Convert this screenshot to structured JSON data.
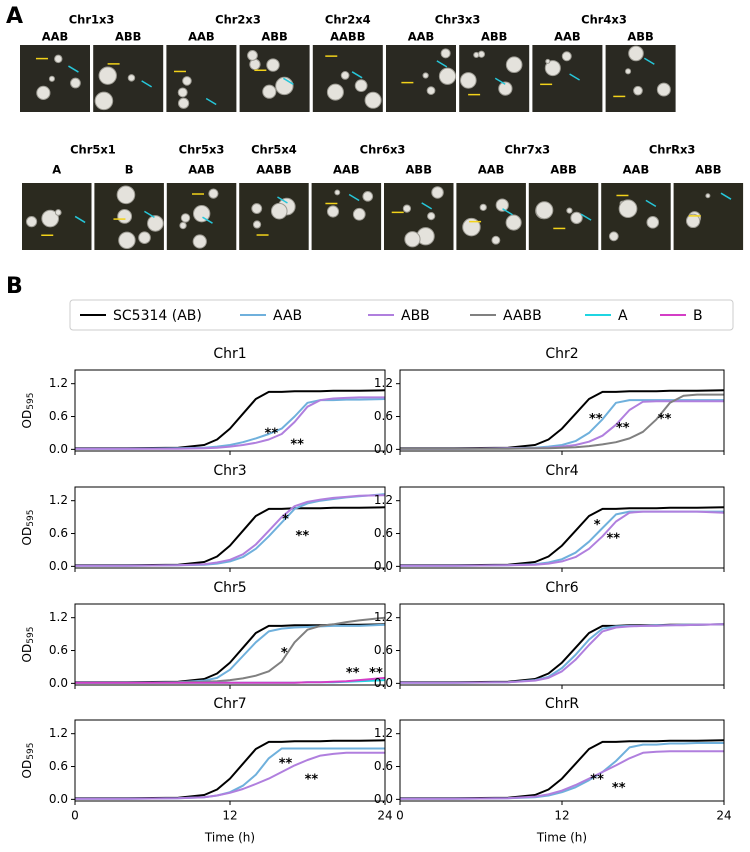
{
  "panel_a": {
    "label": "A",
    "rows": [
      [
        {
          "label": "Chr1x3",
          "genotypes": [
            "AAB",
            "ABB"
          ]
        },
        {
          "label": "Chr2x3",
          "genotypes": [
            "AAB",
            "ABB"
          ]
        },
        {
          "label": "Chr2x4",
          "genotypes": [
            "AABB"
          ]
        },
        {
          "label": "Chr3x3",
          "genotypes": [
            "AAB",
            "ABB"
          ]
        },
        {
          "label": "Chr4x3",
          "genotypes": [
            "AAB",
            "ABB"
          ]
        }
      ],
      [
        {
          "label": "Chr5x1",
          "genotypes": [
            "A",
            "B"
          ]
        },
        {
          "label": "Chr5x3",
          "genotypes": [
            "AAB"
          ]
        },
        {
          "label": "Chr5x4",
          "genotypes": [
            "AABB"
          ]
        },
        {
          "label": "Chr6x3",
          "genotypes": [
            "AAB",
            "ABB"
          ]
        },
        {
          "label": "Chr7x3",
          "genotypes": [
            "AAB",
            "ABB"
          ]
        },
        {
          "label": "ChrRx3",
          "genotypes": [
            "AAB",
            "ABB"
          ]
        }
      ]
    ]
  },
  "panel_b": {
    "label": "B",
    "legend": [
      {
        "name": "SC5314 (AB)",
        "color": "#000000"
      },
      {
        "name": "AAB",
        "color": "#6fb0dc"
      },
      {
        "name": "ABB",
        "color": "#b07fde"
      },
      {
        "name": "AABB",
        "color": "#808080"
      },
      {
        "name": "A",
        "color": "#1fd5e2"
      },
      {
        "name": "B",
        "color": "#d43ec6"
      }
    ]
  },
  "chart_data": [
    {
      "type": "line",
      "title": "Chr1",
      "x": [
        0,
        4,
        8,
        10,
        11,
        12,
        13,
        14,
        15,
        16,
        17,
        18,
        19,
        20,
        21,
        22,
        24
      ],
      "xlim": [
        0,
        24
      ],
      "ylim": [
        -0.03,
        1.45
      ],
      "xticks": [
        0,
        12,
        24
      ],
      "yticks": [
        {
          "value": 0,
          "label": "0.0"
        },
        0.6,
        1.2
      ],
      "ylabel": "OD",
      "ylabel_subscript": "595",
      "show_xtick_labels": false,
      "series": [
        {
          "name": "SC5314 (AB)",
          "color": "#000000",
          "values": [
            0.02,
            0.02,
            0.03,
            0.08,
            0.18,
            0.38,
            0.65,
            0.92,
            1.05,
            1.05,
            1.06,
            1.06,
            1.06,
            1.07,
            1.07,
            1.07,
            1.08
          ]
        },
        {
          "name": "AAB",
          "color": "#6fb0dc",
          "values": [
            0.01,
            0.01,
            0.02,
            0.03,
            0.05,
            0.08,
            0.13,
            0.2,
            0.28,
            0.38,
            0.6,
            0.85,
            0.9,
            0.9,
            0.91,
            0.91,
            0.92
          ]
        },
        {
          "name": "ABB",
          "color": "#b07fde",
          "values": [
            0.01,
            0.01,
            0.01,
            0.02,
            0.03,
            0.05,
            0.08,
            0.12,
            0.18,
            0.28,
            0.5,
            0.78,
            0.9,
            0.93,
            0.94,
            0.95,
            0.95
          ]
        }
      ],
      "annotations": [
        {
          "text": "**",
          "x": 15.2,
          "y": 0.28
        },
        {
          "text": "**",
          "x": 17.2,
          "y": 0.08
        }
      ]
    },
    {
      "type": "line",
      "title": "Chr2",
      "x": [
        0,
        4,
        8,
        10,
        11,
        12,
        13,
        14,
        15,
        16,
        17,
        18,
        19,
        20,
        21,
        22,
        24
      ],
      "xlim": [
        0,
        24
      ],
      "ylim": [
        -0.03,
        1.45
      ],
      "xticks": [
        0,
        12,
        24
      ],
      "yticks": [
        {
          "value": 0,
          "label": "0.0"
        },
        0.6,
        1.2
      ],
      "show_xtick_labels": false,
      "series": [
        {
          "name": "SC5314 (AB)",
          "color": "#000000",
          "values": [
            0.02,
            0.02,
            0.03,
            0.08,
            0.18,
            0.38,
            0.65,
            0.92,
            1.05,
            1.05,
            1.06,
            1.06,
            1.06,
            1.07,
            1.07,
            1.07,
            1.08
          ]
        },
        {
          "name": "AAB",
          "color": "#6fb0dc",
          "values": [
            0.01,
            0.01,
            0.02,
            0.03,
            0.05,
            0.08,
            0.15,
            0.3,
            0.55,
            0.85,
            0.9,
            0.9,
            0.9,
            0.9,
            0.9,
            0.9,
            0.9
          ]
        },
        {
          "name": "ABB",
          "color": "#b07fde",
          "values": [
            0.01,
            0.01,
            0.02,
            0.02,
            0.03,
            0.05,
            0.08,
            0.14,
            0.25,
            0.45,
            0.72,
            0.87,
            0.88,
            0.88,
            0.88,
            0.88,
            0.88
          ]
        },
        {
          "name": "AABB",
          "color": "#808080",
          "values": [
            0.01,
            0.01,
            0.01,
            0.02,
            0.02,
            0.03,
            0.04,
            0.06,
            0.09,
            0.13,
            0.2,
            0.32,
            0.55,
            0.85,
            0.98,
            1.0,
            1.0
          ]
        }
      ],
      "annotations": [
        {
          "text": "**",
          "x": 14.5,
          "y": 0.55
        },
        {
          "text": "**",
          "x": 16.5,
          "y": 0.38
        },
        {
          "text": "**",
          "x": 19.6,
          "y": 0.55
        }
      ]
    },
    {
      "type": "line",
      "title": "Chr3",
      "x": [
        0,
        4,
        8,
        10,
        11,
        12,
        13,
        14,
        15,
        16,
        17,
        18,
        19,
        20,
        21,
        22,
        24
      ],
      "xlim": [
        0,
        24
      ],
      "ylim": [
        -0.03,
        1.45
      ],
      "xticks": [
        0,
        12,
        24
      ],
      "yticks": [
        {
          "value": 0,
          "label": "0.0"
        },
        0.6,
        1.2
      ],
      "ylabel": "OD",
      "ylabel_subscript": "595",
      "show_xtick_labels": false,
      "series": [
        {
          "name": "SC5314 (AB)",
          "color": "#000000",
          "values": [
            0.02,
            0.02,
            0.03,
            0.08,
            0.18,
            0.38,
            0.65,
            0.92,
            1.05,
            1.05,
            1.06,
            1.06,
            1.06,
            1.07,
            1.07,
            1.07,
            1.08
          ]
        },
        {
          "name": "AAB",
          "color": "#6fb0dc",
          "values": [
            0.01,
            0.01,
            0.02,
            0.03,
            0.05,
            0.09,
            0.17,
            0.32,
            0.55,
            0.8,
            1.05,
            1.15,
            1.2,
            1.23,
            1.26,
            1.28,
            1.32
          ]
        },
        {
          "name": "ABB",
          "color": "#b07fde",
          "values": [
            0.01,
            0.01,
            0.02,
            0.04,
            0.07,
            0.12,
            0.22,
            0.4,
            0.65,
            0.9,
            1.1,
            1.18,
            1.22,
            1.25,
            1.27,
            1.29,
            1.3
          ]
        }
      ],
      "annotations": [
        {
          "text": "*",
          "x": 16.3,
          "y": 0.85
        },
        {
          "text": "**",
          "x": 17.6,
          "y": 0.55
        }
      ]
    },
    {
      "type": "line",
      "title": "Chr4",
      "x": [
        0,
        4,
        8,
        10,
        11,
        12,
        13,
        14,
        15,
        16,
        17,
        18,
        19,
        20,
        21,
        22,
        24
      ],
      "xlim": [
        0,
        24
      ],
      "ylim": [
        -0.03,
        1.45
      ],
      "xticks": [
        0,
        12,
        24
      ],
      "yticks": [
        {
          "value": 0,
          "label": "0.0"
        },
        0.6,
        1.2
      ],
      "show_xtick_labels": false,
      "series": [
        {
          "name": "SC5314 (AB)",
          "color": "#000000",
          "values": [
            0.02,
            0.02,
            0.03,
            0.08,
            0.18,
            0.38,
            0.65,
            0.92,
            1.05,
            1.05,
            1.06,
            1.06,
            1.06,
            1.07,
            1.07,
            1.07,
            1.08
          ]
        },
        {
          "name": "AAB",
          "color": "#6fb0dc",
          "values": [
            0.01,
            0.01,
            0.02,
            0.04,
            0.07,
            0.13,
            0.25,
            0.45,
            0.7,
            0.95,
            1.0,
            1.0,
            1.0,
            1.0,
            1.0,
            1.0,
            1.0
          ]
        },
        {
          "name": "ABB",
          "color": "#b07fde",
          "values": [
            0.01,
            0.01,
            0.02,
            0.03,
            0.05,
            0.09,
            0.17,
            0.32,
            0.55,
            0.82,
            0.98,
            1.0,
            1.0,
            1.0,
            1.0,
            1.0,
            0.98
          ]
        }
      ],
      "annotations": [
        {
          "text": "*",
          "x": 14.6,
          "y": 0.75
        },
        {
          "text": "**",
          "x": 15.8,
          "y": 0.5
        }
      ]
    },
    {
      "type": "line",
      "title": "Chr5",
      "x": [
        0,
        4,
        8,
        10,
        11,
        12,
        13,
        14,
        15,
        16,
        17,
        18,
        19,
        20,
        21,
        22,
        24
      ],
      "xlim": [
        0,
        24
      ],
      "ylim": [
        -0.03,
        1.45
      ],
      "xticks": [
        0,
        12,
        24
      ],
      "yticks": [
        {
          "value": 0,
          "label": "0.0"
        },
        0.6,
        1.2
      ],
      "ylabel": "OD",
      "ylabel_subscript": "595",
      "show_xtick_labels": false,
      "series": [
        {
          "name": "SC5314 (AB)",
          "color": "#000000",
          "values": [
            0.02,
            0.02,
            0.03,
            0.08,
            0.18,
            0.38,
            0.65,
            0.92,
            1.05,
            1.05,
            1.06,
            1.06,
            1.06,
            1.07,
            1.07,
            1.07,
            1.08
          ]
        },
        {
          "name": "AAB",
          "color": "#6fb0dc",
          "values": [
            0.01,
            0.01,
            0.02,
            0.05,
            0.1,
            0.25,
            0.5,
            0.75,
            0.95,
            1.0,
            1.02,
            1.03,
            1.04,
            1.05,
            1.05,
            1.05,
            1.07
          ]
        },
        {
          "name": "AABB",
          "color": "#808080",
          "values": [
            0.01,
            0.01,
            0.02,
            0.03,
            0.04,
            0.06,
            0.09,
            0.14,
            0.22,
            0.4,
            0.75,
            0.98,
            1.05,
            1.08,
            1.12,
            1.15,
            1.2
          ]
        },
        {
          "name": "A",
          "color": "#1fd5e2",
          "values": [
            0.01,
            0.01,
            0.01,
            0.01,
            0.01,
            0.01,
            0.01,
            0.01,
            0.01,
            0.01,
            0.01,
            0.02,
            0.02,
            0.02,
            0.03,
            0.04,
            0.06
          ]
        },
        {
          "name": "B",
          "color": "#d43ec6",
          "values": [
            0.01,
            0.01,
            0.01,
            0.01,
            0.01,
            0.01,
            0.01,
            0.01,
            0.01,
            0.01,
            0.01,
            0.02,
            0.02,
            0.03,
            0.04,
            0.06,
            0.1
          ]
        }
      ],
      "annotations": [
        {
          "text": "*",
          "x": 16.2,
          "y": 0.55
        },
        {
          "text": "**",
          "x": 21.5,
          "y": 0.18
        },
        {
          "text": "**",
          "x": 23.3,
          "y": 0.18
        }
      ]
    },
    {
      "type": "line",
      "title": "Chr6",
      "x": [
        0,
        4,
        8,
        10,
        11,
        12,
        13,
        14,
        15,
        16,
        17,
        18,
        19,
        20,
        21,
        22,
        24
      ],
      "xlim": [
        0,
        24
      ],
      "ylim": [
        -0.03,
        1.45
      ],
      "xticks": [
        0,
        12,
        24
      ],
      "yticks": [
        {
          "value": 0,
          "label": "0.0"
        },
        0.6,
        1.2
      ],
      "show_xtick_labels": false,
      "series": [
        {
          "name": "SC5314 (AB)",
          "color": "#000000",
          "values": [
            0.02,
            0.02,
            0.03,
            0.08,
            0.18,
            0.38,
            0.65,
            0.92,
            1.05,
            1.05,
            1.06,
            1.06,
            1.06,
            1.07,
            1.07,
            1.07,
            1.08
          ]
        },
        {
          "name": "AAB",
          "color": "#6fb0dc",
          "values": [
            0.01,
            0.01,
            0.02,
            0.06,
            0.12,
            0.28,
            0.52,
            0.8,
            1.0,
            1.04,
            1.05,
            1.05,
            1.06,
            1.06,
            1.07,
            1.07,
            1.08
          ]
        },
        {
          "name": "ABB",
          "color": "#b07fde",
          "values": [
            0.01,
            0.01,
            0.02,
            0.05,
            0.1,
            0.22,
            0.43,
            0.7,
            0.95,
            1.02,
            1.04,
            1.05,
            1.05,
            1.06,
            1.06,
            1.07,
            1.08
          ]
        }
      ]
    },
    {
      "type": "line",
      "title": "Chr7",
      "x": [
        0,
        4,
        8,
        10,
        11,
        12,
        13,
        14,
        15,
        16,
        17,
        18,
        19,
        20,
        21,
        22,
        24
      ],
      "xlim": [
        0,
        24
      ],
      "ylim": [
        -0.03,
        1.45
      ],
      "xticks": [
        0,
        12,
        24
      ],
      "yticks": [
        {
          "value": 0,
          "label": "0.0"
        },
        0.6,
        1.2
      ],
      "ylabel": "OD",
      "ylabel_subscript": "595",
      "xlabel": "Time (h)",
      "show_xtick_labels": true,
      "series": [
        {
          "name": "SC5314 (AB)",
          "color": "#000000",
          "values": [
            0.02,
            0.02,
            0.03,
            0.08,
            0.18,
            0.38,
            0.65,
            0.92,
            1.05,
            1.05,
            1.06,
            1.06,
            1.06,
            1.07,
            1.07,
            1.07,
            1.08
          ]
        },
        {
          "name": "AAB",
          "color": "#6fb0dc",
          "values": [
            0.01,
            0.01,
            0.02,
            0.04,
            0.07,
            0.13,
            0.25,
            0.45,
            0.75,
            0.93,
            0.93,
            0.93,
            0.93,
            0.93,
            0.93,
            0.93,
            0.93
          ]
        },
        {
          "name": "ABB",
          "color": "#b07fde",
          "values": [
            0.01,
            0.01,
            0.02,
            0.04,
            0.07,
            0.12,
            0.19,
            0.28,
            0.38,
            0.5,
            0.62,
            0.72,
            0.8,
            0.83,
            0.85,
            0.85,
            0.85
          ]
        }
      ],
      "annotations": [
        {
          "text": "**",
          "x": 16.3,
          "y": 0.65
        },
        {
          "text": "**",
          "x": 18.3,
          "y": 0.35
        }
      ]
    },
    {
      "type": "line",
      "title": "ChrR",
      "x": [
        0,
        4,
        8,
        10,
        11,
        12,
        13,
        14,
        15,
        16,
        17,
        18,
        19,
        20,
        21,
        22,
        24
      ],
      "xlim": [
        0,
        24
      ],
      "ylim": [
        -0.03,
        1.45
      ],
      "xticks": [
        0,
        12,
        24
      ],
      "yticks": [
        {
          "value": 0,
          "label": "0.0"
        },
        0.6,
        1.2
      ],
      "xlabel": "Time (h)",
      "show_xtick_labels": true,
      "series": [
        {
          "name": "SC5314 (AB)",
          "color": "#000000",
          "values": [
            0.02,
            0.02,
            0.03,
            0.08,
            0.18,
            0.38,
            0.65,
            0.92,
            1.05,
            1.05,
            1.06,
            1.06,
            1.06,
            1.07,
            1.07,
            1.07,
            1.08
          ]
        },
        {
          "name": "AAB",
          "color": "#6fb0dc",
          "values": [
            0.01,
            0.01,
            0.02,
            0.04,
            0.07,
            0.13,
            0.22,
            0.35,
            0.5,
            0.7,
            0.95,
            1.0,
            1.0,
            1.02,
            1.02,
            1.03,
            1.03
          ]
        },
        {
          "name": "ABB",
          "color": "#b07fde",
          "values": [
            0.01,
            0.01,
            0.02,
            0.05,
            0.09,
            0.16,
            0.26,
            0.38,
            0.5,
            0.62,
            0.75,
            0.85,
            0.87,
            0.88,
            0.88,
            0.88,
            0.88
          ]
        }
      ],
      "annotations": [
        {
          "text": "**",
          "x": 14.6,
          "y": 0.35
        },
        {
          "text": "**",
          "x": 16.2,
          "y": 0.2
        }
      ]
    }
  ]
}
